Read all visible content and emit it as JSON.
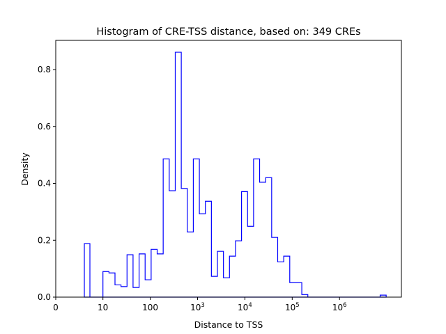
{
  "chart_data": {
    "type": "histogram",
    "title": "Histogram of CRE-TSS distance, based on: 349 CREs",
    "xlabel": "Distance to TSS",
    "ylabel": "Density",
    "xscale": "symlog",
    "ylim": [
      0,
      0.9
    ],
    "grid": false,
    "histtype": "step",
    "color": "#0000ff",
    "x_ticks": [
      {
        "value": 0,
        "label": "0",
        "exp": ""
      },
      {
        "value": 10,
        "label": "10",
        "exp": ""
      },
      {
        "value": 100,
        "label": "100",
        "exp": ""
      },
      {
        "value": 1000,
        "label": "10",
        "exp": "3"
      },
      {
        "value": 10000,
        "label": "10",
        "exp": "4"
      },
      {
        "value": 100000,
        "label": "10",
        "exp": "5"
      },
      {
        "value": 1000000,
        "label": "10",
        "exp": "6"
      }
    ],
    "y_ticks": [
      {
        "value": 0,
        "label": "0.0"
      },
      {
        "value": 0.2,
        "label": "0.2"
      },
      {
        "value": 0.4,
        "label": "0.4"
      },
      {
        "value": 0.6,
        "label": "0.6"
      },
      {
        "value": 0.8,
        "label": "0.8"
      }
    ],
    "bin_edges": [
      6.06,
      7.24,
      8.6,
      10,
      13.41,
      17.98,
      24.1,
      32.3,
      43.3,
      58.1,
      77.9,
      104.4,
      140,
      187.7,
      251.7,
      337.5,
      452.5,
      606.7,
      813.5,
      1091,
      1462,
      1961,
      2629,
      3525,
      4726,
      6337,
      8497,
      11392,
      15275,
      20480,
      27460,
      36819,
      49367,
      66192,
      88751,
      119000,
      159560,
      213940,
      286840,
      384600,
      515680,
      691420,
      927060,
      1243000,
      1666600,
      2234600,
      2996200,
      4017300,
      5386500,
      7222300,
      9683800
    ],
    "density": [
      0.188,
      0,
      0,
      0.09,
      0.085,
      0.043,
      0.037,
      0.149,
      0.034,
      0.152,
      0.061,
      0.168,
      0.152,
      0.486,
      0.374,
      0.861,
      0.382,
      0.229,
      0.486,
      0.293,
      0.337,
      0.073,
      0.161,
      0.068,
      0.144,
      0.198,
      0.371,
      0.249,
      0.486,
      0.404,
      0.42,
      0.21,
      0.124,
      0.144,
      0.051,
      0.051,
      0.009,
      0,
      0,
      0,
      0,
      0,
      0,
      0,
      0,
      0,
      0,
      0,
      0,
      0.007
    ]
  }
}
